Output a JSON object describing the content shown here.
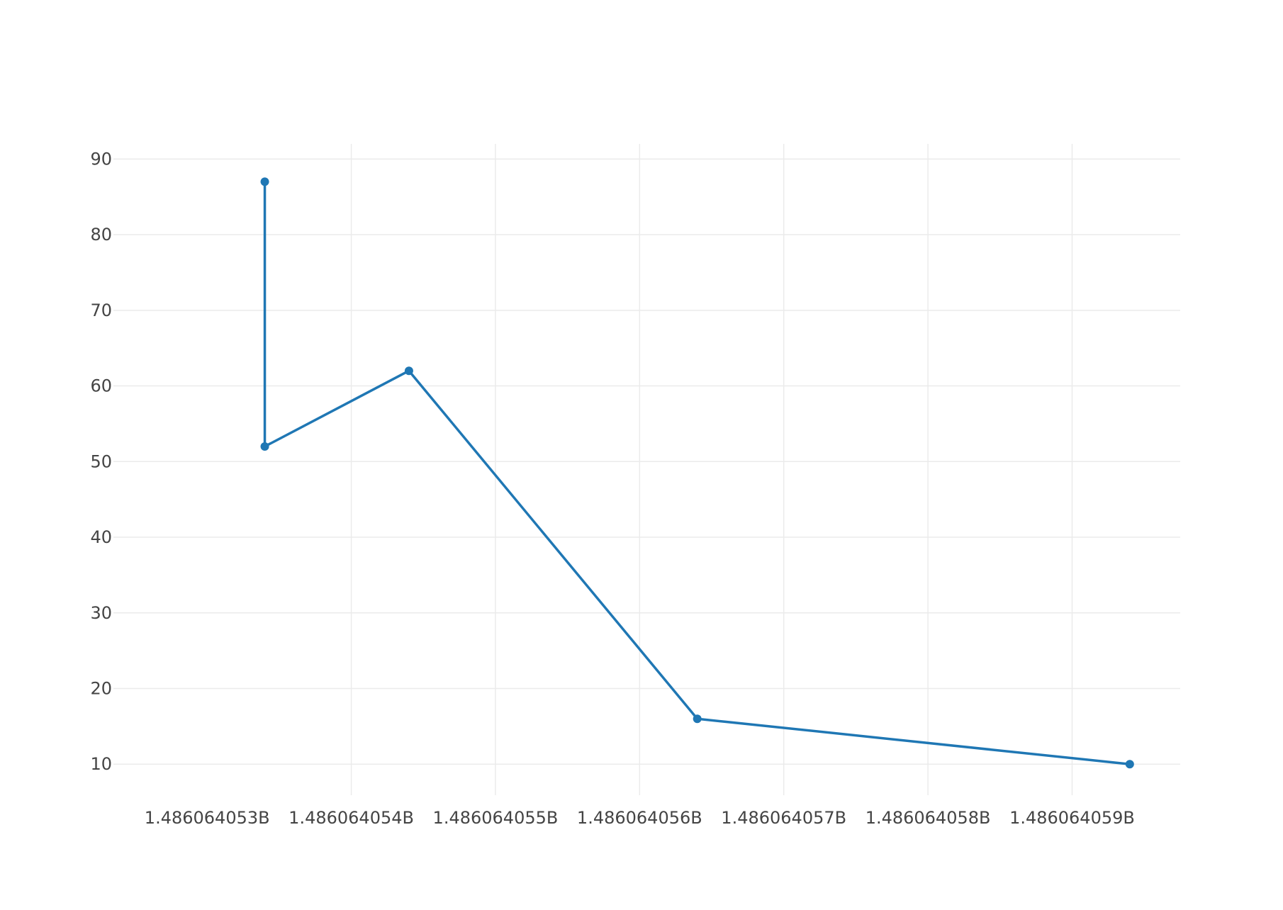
{
  "chart_data": {
    "type": "line",
    "title": "",
    "xlabel": "",
    "ylabel": "",
    "xlim": [
      1486064052.35,
      1486064059.75
    ],
    "ylim": [
      5.9,
      92
    ],
    "x_ticks": [
      1486064053,
      1486064054,
      1486064055,
      1486064056,
      1486064057,
      1486064058,
      1486064059
    ],
    "x_tick_labels": [
      "1.486064053B",
      "1.486064054B",
      "1.486064055B",
      "1.486064056B",
      "1.486064057B",
      "1.486064058B",
      "1.486064059B"
    ],
    "y_ticks": [
      10,
      20,
      30,
      40,
      50,
      60,
      70,
      80,
      90
    ],
    "y_tick_labels": [
      "10",
      "20",
      "30",
      "40",
      "50",
      "60",
      "70",
      "80",
      "90"
    ],
    "grid": true,
    "legend": "none",
    "series": [
      {
        "color": "#1f77b4",
        "mode": "lines+markers",
        "x": [
          1486064053.4,
          1486064053.4,
          1486064054.4,
          1486064056.4,
          1486064059.4
        ],
        "y": [
          87,
          52,
          62,
          16,
          10
        ]
      }
    ]
  }
}
